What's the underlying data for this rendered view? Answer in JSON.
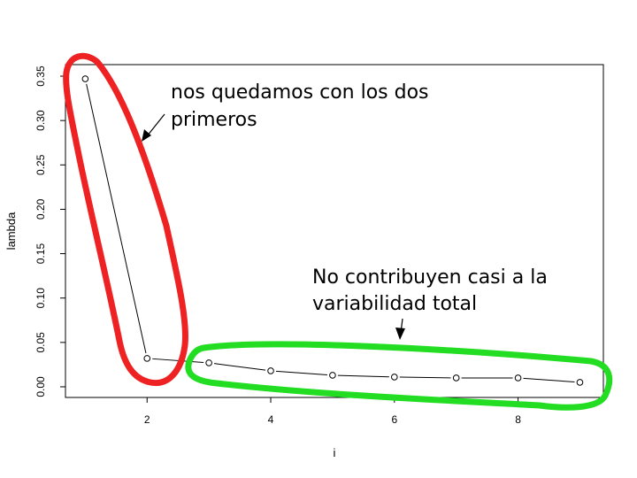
{
  "chart_data": {
    "type": "line",
    "title": "",
    "xlabel": "i",
    "ylabel": "lambda",
    "x": [
      1,
      2,
      3,
      4,
      5,
      6,
      7,
      8,
      9
    ],
    "series": [
      {
        "values": [
          0.347,
          0.032,
          0.027,
          0.018,
          0.013,
          0.011,
          0.01,
          0.01,
          0.005
        ]
      }
    ],
    "xlim": [
      0.68,
      9.38
    ],
    "ylim": [
      -0.012,
      0.363
    ],
    "xticks": [
      2,
      4,
      6,
      8
    ],
    "yticks": [
      0.0,
      0.05,
      0.1,
      0.15,
      0.2,
      0.25,
      0.3,
      0.35
    ],
    "xtick_labels": [
      "2",
      "4",
      "6",
      "8"
    ],
    "ytick_labels": [
      "0.00",
      "0.05",
      "0.10",
      "0.15",
      "0.20",
      "0.25",
      "0.30",
      "0.35"
    ],
    "grid": false,
    "legend": "none",
    "line_color": "#000000",
    "annotations": [
      {
        "lines": [
          "nos quedamos con los dos",
          "primeros"
        ],
        "highlight_color": "#ee2222",
        "encloses_x": [
          1,
          2
        ]
      },
      {
        "lines": [
          "No contribuyen casi a la",
          "variabilidad total"
        ],
        "highlight_color": "#22dd22",
        "encloses_x": [
          3,
          4,
          5,
          6,
          7,
          8,
          9
        ]
      }
    ]
  }
}
